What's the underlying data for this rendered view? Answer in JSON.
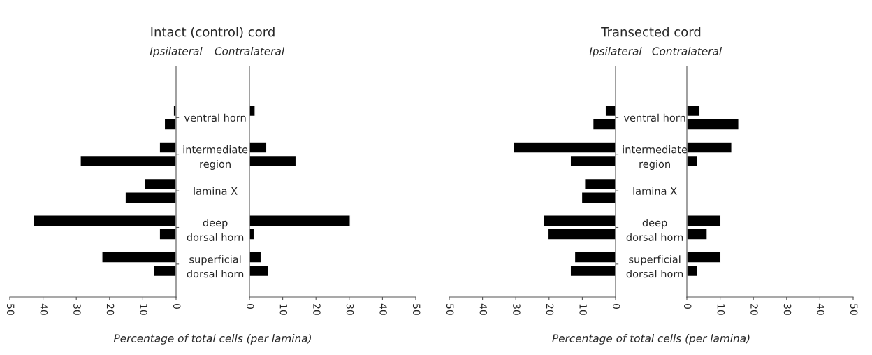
{
  "chart_data": [
    {
      "type": "bar",
      "orientation": "horizontal",
      "title": "Ipsilateral",
      "xlabel": "Percentage of total cells (per lamina)",
      "annotations": [
        "Intact (control) cord"
      ],
      "categories": [
        "ventral horn",
        "intermediate\nregion",
        "lamina X",
        "deep\ndorsal horn",
        "superficial\ndorsal horn"
      ],
      "series": [
        {
          "color": "#000000",
          "values": [
            0.8,
            5,
            9.4,
            43,
            22.3
          ]
        },
        {
          "color": "#000000",
          "values": [
            3.5,
            28.8,
            15.3,
            5,
            6.8
          ]
        }
      ],
      "xlim": [
        50,
        0
      ],
      "xticks": [
        50,
        40,
        30,
        20,
        10,
        0
      ]
    },
    {
      "type": "bar",
      "orientation": "horizontal",
      "title": "Contralateral",
      "tick_labels": "x",
      "series": [
        {
          "color": "#000000",
          "values": [
            1.7,
            5.2,
            null,
            30.3,
            3.5
          ]
        },
        {
          "color": "#000000",
          "values": [
            null,
            14,
            null,
            1.4,
            5.8
          ]
        }
      ],
      "xlim": [
        0,
        50
      ],
      "xticks": [
        0,
        10,
        20,
        30,
        40,
        50
      ]
    },
    {
      "type": "bar",
      "orientation": "horizontal",
      "title": "Ipsilateral",
      "xlabel": "Percentage of total cells (per lamina)",
      "annotations": [
        "Transected cord"
      ],
      "categories": [
        "ventral horn",
        "intermediate\nregion",
        "lamina X",
        "deep\ndorsal horn",
        "superficial\ndorsal horn"
      ],
      "series": [
        {
          "color": "#000000",
          "values": [
            3.1,
            30.8,
            9.3,
            21.6,
            12.3
          ]
        },
        {
          "color": "#000000",
          "values": [
            6.8,
            13.6,
            10.2,
            20.3,
            13.6
          ]
        }
      ],
      "xlim": [
        50,
        0
      ],
      "xticks": [
        50,
        40,
        30,
        20,
        10,
        0
      ]
    },
    {
      "type": "bar",
      "orientation": "horizontal",
      "title": "Contralateral",
      "tick_labels": "x",
      "series": [
        {
          "color": "#000000",
          "values": [
            3.8,
            13.5,
            null,
            10.1,
            10.1
          ]
        },
        {
          "color": "#000000",
          "values": [
            15.6,
            3.1,
            null,
            6.1,
            3.1
          ]
        }
      ],
      "xlim": [
        0,
        50
      ],
      "xticks": [
        0,
        10,
        20,
        30,
        40,
        50
      ]
    }
  ]
}
